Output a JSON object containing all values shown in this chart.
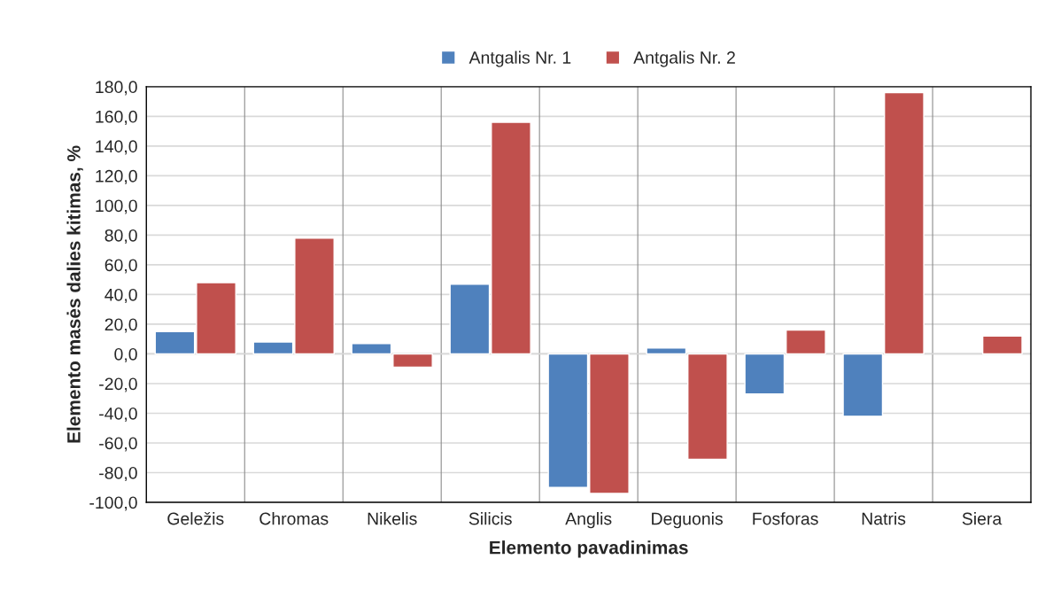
{
  "chart_data": {
    "type": "bar",
    "xlabel": "Elemento pavadinimas",
    "ylabel": "Elemento masės dalies kitimas, %",
    "categories": [
      "Geležis",
      "Chromas",
      "Nikelis",
      "Silicis",
      "Anglis",
      "Deguonis",
      "Fosforas",
      "Natris",
      "Siera"
    ],
    "series": [
      {
        "name": "Antgalis Nr. 1",
        "color": "#4f81bd",
        "values": [
          15,
          8,
          7,
          47,
          -90,
          4,
          -27,
          -42,
          null
        ]
      },
      {
        "name": "Antgalis Nr. 2",
        "color": "#c0504d",
        "values": [
          48,
          78,
          -9,
          156,
          -94,
          -71,
          16,
          176,
          12
        ]
      }
    ],
    "ylim": [
      -100,
      180
    ],
    "yticks": [
      {
        "value": -100,
        "label": "-100,0"
      },
      {
        "value": -80,
        "label": "-80,0"
      },
      {
        "value": -60,
        "label": "-60,0"
      },
      {
        "value": -40,
        "label": "-40,0"
      },
      {
        "value": -20,
        "label": "-20,0"
      },
      {
        "value": 0,
        "label": "0,0"
      },
      {
        "value": 20,
        "label": "20,0"
      },
      {
        "value": 40,
        "label": "40,0"
      },
      {
        "value": 60,
        "label": "60,0"
      },
      {
        "value": 80,
        "label": "80,0"
      },
      {
        "value": 100,
        "label": "100,0"
      },
      {
        "value": 120,
        "label": "120,0"
      },
      {
        "value": 140,
        "label": "140,0"
      },
      {
        "value": 160,
        "label": "160,0"
      },
      {
        "value": 180,
        "label": "180,0"
      }
    ],
    "grid": true,
    "legend": "top"
  }
}
